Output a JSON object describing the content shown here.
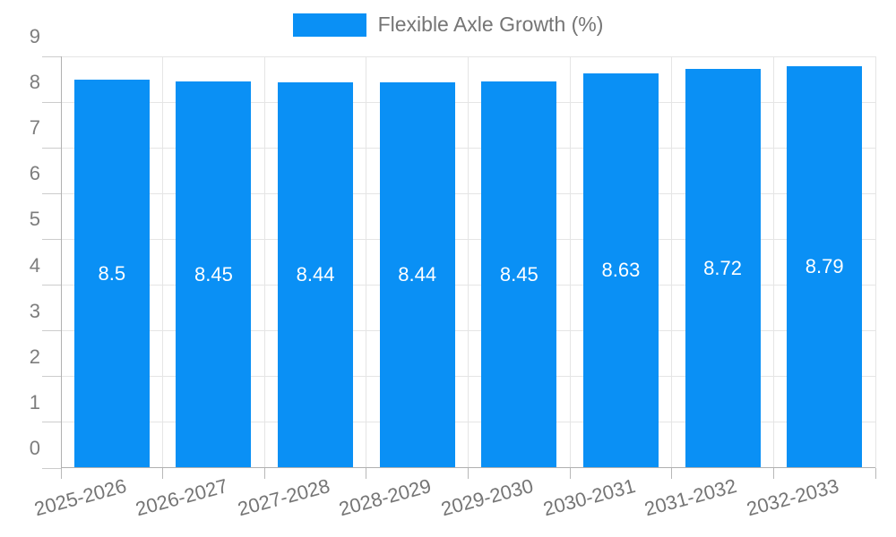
{
  "chart_data": {
    "type": "bar",
    "title": "Flexible Axle Growth (%)",
    "legend": {
      "label": "Flexible Axle Growth (%)",
      "swatch_color": "#0a90f5",
      "position": "top-center"
    },
    "categories": [
      "2025-2026",
      "2026-2027",
      "2027-2028",
      "2028-2029",
      "2029-2030",
      "2030-2031",
      "2031-2032",
      "2032-2033"
    ],
    "series": [
      {
        "name": "Flexible Axle Growth (%)",
        "values": [
          8.5,
          8.45,
          8.44,
          8.44,
          8.45,
          8.63,
          8.72,
          8.79
        ],
        "value_labels": [
          "8.5",
          "8.45",
          "8.44",
          "8.44",
          "8.45",
          "8.63",
          "8.72",
          "8.79"
        ],
        "color": "#0a90f5"
      }
    ],
    "xlabel": "",
    "ylabel": "",
    "ylim": [
      0,
      9
    ],
    "yticks": [
      0,
      1,
      2,
      3,
      4,
      5,
      6,
      7,
      8,
      9
    ],
    "grid": true,
    "colors": {
      "bar": "#0a90f5",
      "gridline": "#e5e5e5",
      "axis_line": "#b0b0b0",
      "tick_text": "#7d7d7d",
      "legend_text": "#757575",
      "bar_label_text": "#ffffff",
      "background": "#ffffff"
    }
  }
}
